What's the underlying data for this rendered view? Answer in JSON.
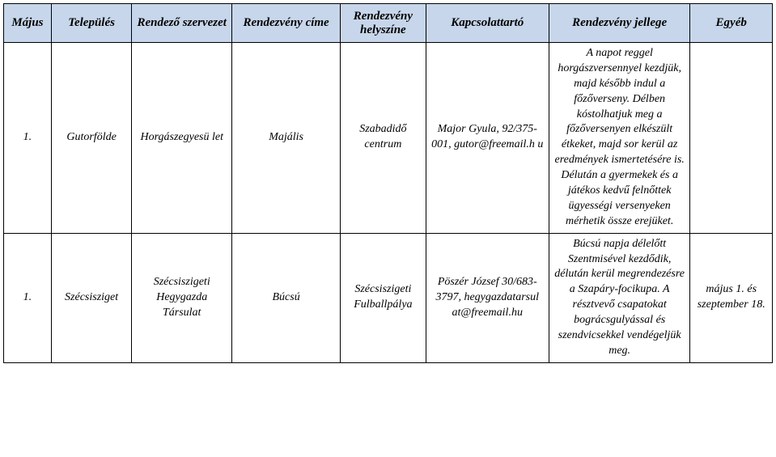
{
  "table": {
    "headers": [
      "Május",
      "Település",
      "Rendező szervezet",
      "Rendezvény címe",
      "Rendezvény helyszíne",
      "Kapcsolattartó",
      "Rendezvény jellege",
      "Egyéb"
    ],
    "rows": [
      {
        "num": "1.",
        "telepules": "Gutorfölde",
        "szervezet": "Horgászegyesü let",
        "cim": "Majális",
        "helyszin": "Szabadidő centrum",
        "kapcsolat": "Major Gyula, 92/375-001, gutor@freemail.h u",
        "jelleg": "A napot reggel horgászversennyel kezdjük, majd később indul a főzőverseny. Délben kóstolhatjuk meg a főzőversenyen elkészült étkeket, majd sor kerül az eredmények ismertetésére is. Délután a gyermekek és a játékos kedvű felnőttek ügyességi versenyeken mérhetik össze erejüket.",
        "egyeb": ""
      },
      {
        "num": "1.",
        "telepules": "Szécsisziget",
        "szervezet": "Szécsiszigeti Hegygazda Társulat",
        "cim": "Búcsú",
        "helyszin": "Szécsiszigeti Fulballpálya",
        "kapcsolat": "Pöszér József 30/683-3797, hegygazdatarsul at@freemail.hu",
        "jelleg": "Búcsú napja délelőtt Szentmisével kezdődik, délután kerül megrendezésre a Szapáry-focikupa. A résztvevő csapatokat bográcsgulyással és szendvicsekkel vendégeljük meg.",
        "egyeb": "május 1. és szeptember 18."
      }
    ]
  }
}
